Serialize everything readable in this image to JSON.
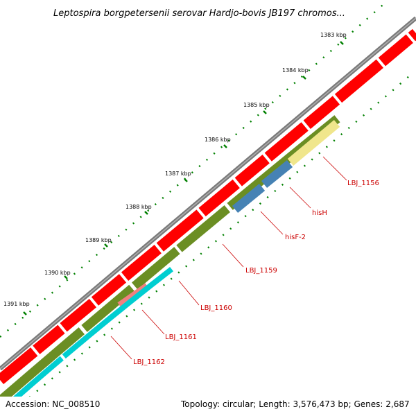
{
  "title": "Leptospira borgpetersenii serovar Hardjo-bovis JB197 chromos...",
  "kbp_labels": [
    "1383 kbp",
    "1384 kbp",
    "1385 kbp",
    "1386 kbp",
    "1387 kbp",
    "1388 kbp",
    "1389 kbp",
    "1390 kbp",
    "1391 kbp"
  ],
  "gene_labels": [
    "LBJ_1156",
    "hisH",
    "hisF-2",
    "LBJ_1159",
    "LBJ_1160",
    "LBJ_1161",
    "LBJ_1162"
  ],
  "footer": {
    "accession": "Accession: NC_008510",
    "summary": "Topology: circular; Length: 3,576,473 bp; Genes: 2,687"
  },
  "colors": {
    "backbone": "#7a7a7a",
    "cds": "#ff0000",
    "olive_gene": "#6b8e23",
    "his_genes": "#4682b4",
    "lbj_1156": "#f0e68c",
    "lbj_1161": "#f08080",
    "cyan_gene": "#00ced1",
    "ticks": "#008000",
    "label_line": "#cc0000"
  }
}
